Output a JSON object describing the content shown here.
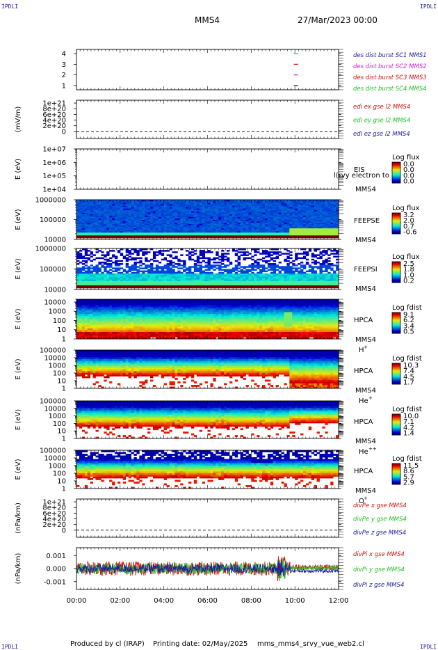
{
  "corners": {
    "top_left": "IPDLI",
    "top_right": "IPDLI",
    "bottom_left": "IPDLI",
    "bottom_right": "IPDLI"
  },
  "header": {
    "spacecraft": "MMS4",
    "date": "27/Mar/2023 00:00"
  },
  "footer": {
    "produced_by": "Produced by cl (IRAP)",
    "printing_date": "Printing date: 02/May/2025",
    "script": "mms_mms4_srvy_vue_web2.cl"
  },
  "colors": {
    "blue": "#1a1aa0",
    "magenta": "#d020d0",
    "red": "#d01010",
    "green": "#20c020",
    "frame": "#000000"
  },
  "x_axis": {
    "range_hours": [
      0,
      12
    ],
    "ticks": [
      {
        "v": 0,
        "label": "00:00"
      },
      {
        "v": 2,
        "label": "02:00"
      },
      {
        "v": 4,
        "label": "04:00"
      },
      {
        "v": 6,
        "label": "06:00"
      },
      {
        "v": 8,
        "label": "08:00"
      },
      {
        "v": 10,
        "label": "10:00"
      },
      {
        "v": 12,
        "label": "12:00"
      }
    ]
  },
  "chart_data": [
    {
      "id": "burst",
      "type": "scatter",
      "ylabel": "",
      "ylim": [
        0.6,
        4.4
      ],
      "yticks": [
        {
          "v": 4,
          "label": "4"
        },
        {
          "v": 3,
          "label": "3"
        },
        {
          "v": 2,
          "label": "2"
        },
        {
          "v": 1,
          "label": "1"
        }
      ],
      "series": [
        {
          "name": "des dist burst SC1 MMS1",
          "color": "#1a1aa0",
          "y": 1,
          "x": [
            9.95,
            10.15
          ]
        },
        {
          "name": "des dist burst SC2 MMS2",
          "color": "#d020d0",
          "y": 2,
          "x": [
            9.95,
            10.15
          ]
        },
        {
          "name": "des dist burst SC3 MMS3",
          "color": "#d01010",
          "y": 3,
          "x": [
            9.95,
            10.15
          ]
        },
        {
          "name": "des dist burst SC4 MMS4",
          "color": "#20c020",
          "y": 4,
          "x": [
            9.95,
            10.15
          ]
        }
      ]
    },
    {
      "id": "edi",
      "type": "line",
      "ylabel": "(mV/m)",
      "ylim": [
        -0.25,
        1.1
      ],
      "yticks": [
        {
          "v": 1,
          "label": "1e+21"
        },
        {
          "v": 0.8,
          "label": "8e+20"
        },
        {
          "v": 0.6,
          "label": "6e+20"
        },
        {
          "v": 0.4,
          "label": "4e+20"
        },
        {
          "v": 0.2,
          "label": "2e+20"
        },
        {
          "v": 0,
          "label": "0"
        }
      ],
      "zero_line": true,
      "series": [
        {
          "name": "edi ex gse l2 MMS4",
          "color": "#d01010"
        },
        {
          "name": "edi ey gse l2 MMS4",
          "color": "#20c020"
        },
        {
          "name": "edi ez gse l2 MMS4",
          "color": "#1a1aa0"
        }
      ]
    },
    {
      "id": "eis",
      "type": "heatmap",
      "ylabel": "E (eV)",
      "log": true,
      "ylim": [
        10000,
        10000000
      ],
      "yticks": [
        {
          "v": 10000000,
          "label": "1e+07"
        },
        {
          "v": 1000000,
          "label": "1e+06"
        },
        {
          "v": 100000,
          "label": "1e+05"
        },
        {
          "v": 10000,
          "label": "1e+04"
        }
      ],
      "label_lines": [
        "EIS",
        "MMS4"
      ],
      "overlay_text": "l(rvy electron to",
      "colorbar": {
        "title": "Log flux",
        "ticks": [
          "0.0",
          "0.0",
          "0.0",
          "0.0"
        ]
      },
      "profile": "empty"
    },
    {
      "id": "feepse",
      "type": "heatmap",
      "ylabel": "E (eV)",
      "log": true,
      "ylim": [
        10000,
        1000000
      ],
      "yticks": [
        {
          "v": 1000000,
          "label": "1000000"
        },
        {
          "v": 100000,
          "label": "100000"
        },
        {
          "v": 10000,
          "label": "10000"
        }
      ],
      "label_lines": [
        "FEEPSE",
        "MMS4"
      ],
      "colorbar": {
        "title": "Log flux",
        "ticks": [
          "3.2",
          "2.0",
          "0.7",
          "-0.6"
        ]
      },
      "profile": "feepse"
    },
    {
      "id": "feepsi",
      "type": "heatmap",
      "ylabel": "E (eV)",
      "log": true,
      "ylim": [
        10000,
        1000000
      ],
      "yticks": [
        {
          "v": 1000000,
          "label": "1000000"
        },
        {
          "v": 100000,
          "label": "100000"
        },
        {
          "v": 10000,
          "label": "10000"
        }
      ],
      "label_lines": [
        "FEEPSI",
        "MMS4"
      ],
      "colorbar": {
        "title": "Log flux",
        "ticks": [
          "2.5",
          "1.8",
          "1.0",
          "0.2"
        ]
      },
      "profile": "feepsi"
    },
    {
      "id": "hpca_h",
      "type": "heatmap",
      "ylabel": "E (eV)",
      "log": true,
      "ylim": [
        1,
        20000
      ],
      "yticks": [
        {
          "v": 10000,
          "label": "10000"
        },
        {
          "v": 1000,
          "label": "1000"
        },
        {
          "v": 100,
          "label": "100"
        },
        {
          "v": 10,
          "label": "10"
        },
        {
          "v": 1,
          "label": "1"
        }
      ],
      "label_lines": [
        "HPCA",
        "MMS4"
      ],
      "species": "H",
      "charge": "+",
      "colorbar": {
        "title": "Log fdist",
        "ticks": [
          "9.1",
          "6.2",
          "3.4",
          "0.5"
        ]
      },
      "profile": "hpca_h"
    },
    {
      "id": "hpca_he",
      "type": "heatmap",
      "ylabel": "E (eV)",
      "log": true,
      "ylim": [
        1,
        100000
      ],
      "yticks": [
        {
          "v": 100000,
          "label": "100000"
        },
        {
          "v": 10000,
          "label": "10000"
        },
        {
          "v": 1000,
          "label": "1000"
        },
        {
          "v": 100,
          "label": "100"
        },
        {
          "v": 10,
          "label": "10"
        },
        {
          "v": 1,
          "label": "1"
        }
      ],
      "label_lines": [
        "HPCA",
        "MMS4"
      ],
      "species": "He",
      "charge": "+",
      "colorbar": {
        "title": "Log fdist",
        "ticks": [
          "10.3",
          "7.4",
          "4.5",
          "1.7"
        ]
      },
      "profile": "hpca_he"
    },
    {
      "id": "hpca_hepp",
      "type": "heatmap",
      "ylabel": "E (eV)",
      "log": true,
      "ylim": [
        1,
        100000
      ],
      "yticks": [
        {
          "v": 100000,
          "label": "100000"
        },
        {
          "v": 10000,
          "label": "10000"
        },
        {
          "v": 1000,
          "label": "1000"
        },
        {
          "v": 100,
          "label": "100"
        },
        {
          "v": 10,
          "label": "10"
        },
        {
          "v": 1,
          "label": "1"
        }
      ],
      "label_lines": [
        "HPCA",
        "MMS4"
      ],
      "species": "He",
      "charge": "++",
      "colorbar": {
        "title": "Log fdist",
        "ticks": [
          "10.0",
          "7.1",
          "4.2",
          "1.4"
        ]
      },
      "profile": "hpca_hepp"
    },
    {
      "id": "hpca_o",
      "type": "heatmap",
      "ylabel": "E (eV)",
      "log": true,
      "ylim": [
        1,
        100000
      ],
      "yticks": [
        {
          "v": 100000,
          "label": "100000"
        },
        {
          "v": 10000,
          "label": "10000"
        },
        {
          "v": 1000,
          "label": "1000"
        },
        {
          "v": 100,
          "label": "100"
        },
        {
          "v": 10,
          "label": "10"
        },
        {
          "v": 1,
          "label": "1"
        }
      ],
      "label_lines": [
        "HPCA",
        "MMS4"
      ],
      "species": "O",
      "charge": "+",
      "colorbar": {
        "title": "Log fdist",
        "ticks": [
          "11.5",
          "8.6",
          "5.7",
          "2.9"
        ]
      },
      "profile": "hpca_o"
    },
    {
      "id": "divpe",
      "type": "line",
      "ylabel": "(nPa/km)",
      "ylim": [
        -0.25,
        1.1
      ],
      "yticks": [
        {
          "v": 1,
          "label": "1e+21"
        },
        {
          "v": 0.8,
          "label": "8e+20"
        },
        {
          "v": 0.6,
          "label": "6e+20"
        },
        {
          "v": 0.4,
          "label": "4e+20"
        },
        {
          "v": 0.2,
          "label": "2e+20"
        },
        {
          "v": 0,
          "label": "0"
        }
      ],
      "zero_line": true,
      "series": [
        {
          "name": "divPe x gse MMS4",
          "color": "#d01010"
        },
        {
          "name": "divPe y gse MMS4",
          "color": "#20c020"
        },
        {
          "name": "divPe z gse MMS4",
          "color": "#1a1aa0"
        }
      ]
    },
    {
      "id": "divpi",
      "type": "line",
      "ylabel": "(nPa/km)",
      "ylim": [
        -0.0016,
        0.0016
      ],
      "yticks": [
        {
          "v": 0.001,
          "label": "0.001"
        },
        {
          "v": 0,
          "label": "0.000"
        },
        {
          "v": -0.001,
          "label": "-0.001"
        }
      ],
      "zero_line": true,
      "noisy": true,
      "series": [
        {
          "name": "divPi x gse MMS4",
          "color": "#d01010"
        },
        {
          "name": "divPi y gse MMS4",
          "color": "#20c020"
        },
        {
          "name": "divPi z gse MMS4",
          "color": "#1a1aa0"
        }
      ]
    }
  ]
}
